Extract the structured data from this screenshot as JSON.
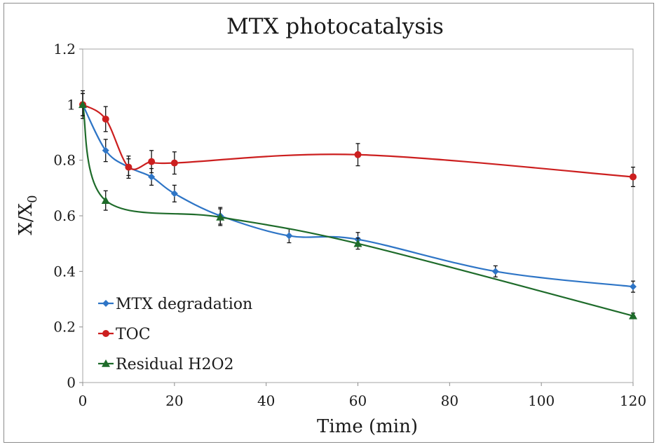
{
  "chart_data": {
    "type": "line",
    "title": "MTX photocatalysis",
    "xlabel": "Time (min)",
    "ylabel_main": "X/X",
    "ylabel_sub": "0",
    "xlim": [
      0,
      120
    ],
    "ylim": [
      0,
      1.2
    ],
    "x_ticks": [
      0,
      20,
      40,
      60,
      80,
      100,
      120
    ],
    "y_ticks": [
      0,
      0.2,
      0.4,
      0.6,
      0.8,
      1,
      1.2
    ],
    "x_tick_labels": [
      "0",
      "20",
      "40",
      "60",
      "80",
      "100",
      "120"
    ],
    "y_tick_labels": [
      "0",
      "0.2",
      "0.4",
      "0.6",
      "0.8",
      "1",
      "1.2"
    ],
    "grid": false,
    "legend_position": "bottom-left",
    "series": [
      {
        "name": "MTX degradation",
        "color": "#2e75c6",
        "marker": "diamond",
        "x": [
          0,
          5,
          10,
          15,
          20,
          30,
          45,
          60,
          90,
          120
        ],
        "y": [
          1.0,
          0.835,
          0.775,
          0.74,
          0.68,
          0.6,
          0.528,
          0.515,
          0.4,
          0.345
        ],
        "err": [
          0.04,
          0.04,
          0.03,
          0.03,
          0.03,
          0.03,
          0.025,
          0.025,
          0.02,
          0.02
        ]
      },
      {
        "name": "TOC",
        "color": "#cc1f1f",
        "marker": "circle",
        "x": [
          0,
          5,
          10,
          15,
          20,
          60,
          120
        ],
        "y": [
          1.0,
          0.948,
          0.775,
          0.795,
          0.79,
          0.82,
          0.74
        ],
        "err": [
          0.05,
          0.045,
          0.04,
          0.04,
          0.04,
          0.04,
          0.035
        ]
      },
      {
        "name": "Residual H2O2",
        "color": "#1e6b2a",
        "marker": "triangle",
        "x": [
          0,
          5,
          30,
          60,
          120
        ],
        "y": [
          1.0,
          0.655,
          0.595,
          0.5,
          0.24
        ],
        "err": [
          0.04,
          0.035,
          0.03,
          0.02,
          0.01
        ]
      }
    ]
  }
}
